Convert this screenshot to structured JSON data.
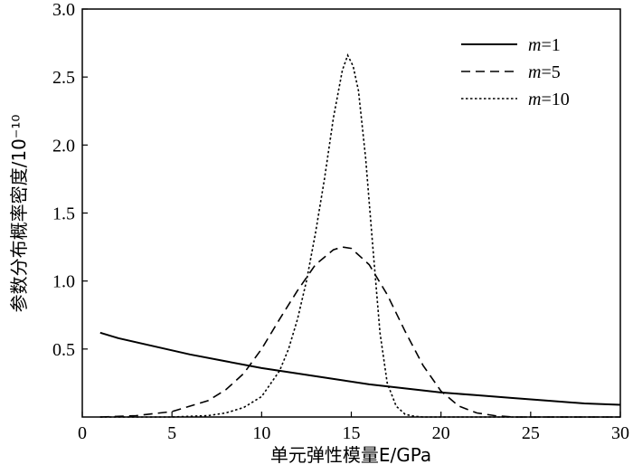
{
  "chart_data": {
    "type": "line",
    "title": "",
    "xlabel": "单元弹性模量E/GPa",
    "ylabel": "参数分布概率密度/10⁻¹⁰",
    "xlim": [
      0,
      30
    ],
    "ylim": [
      0,
      3.0
    ],
    "xticks": [
      "0",
      "5",
      "10",
      "15",
      "20",
      "25",
      "30"
    ],
    "yticks": [
      "0.5",
      "1.0",
      "1.5",
      "2.0",
      "2.5",
      "3.0"
    ],
    "grid": false,
    "legend_position": "top-right",
    "series": [
      {
        "name": "m=1",
        "x": [
          1,
          2,
          4,
          6,
          8,
          10,
          12,
          14,
          16,
          18,
          20,
          22,
          24,
          26,
          28,
          30
        ],
        "y": [
          0.62,
          0.58,
          0.52,
          0.46,
          0.41,
          0.36,
          0.32,
          0.28,
          0.24,
          0.21,
          0.18,
          0.16,
          0.14,
          0.12,
          0.1,
          0.09
        ]
      },
      {
        "name": "m=5",
        "x": [
          1,
          3,
          5,
          7,
          8,
          9,
          10,
          11,
          12,
          13,
          14,
          14.5,
          15,
          16,
          17,
          18,
          19,
          20,
          21,
          22,
          23,
          24,
          30
        ],
        "y": [
          0.0,
          0.01,
          0.04,
          0.12,
          0.2,
          0.32,
          0.5,
          0.72,
          0.93,
          1.12,
          1.23,
          1.25,
          1.24,
          1.12,
          0.9,
          0.63,
          0.38,
          0.19,
          0.08,
          0.03,
          0.01,
          0.0,
          0.0
        ]
      },
      {
        "name": "m=10",
        "x": [
          1,
          5,
          7,
          8,
          9,
          10,
          11,
          11.5,
          12,
          12.5,
          13,
          13.5,
          14,
          14.5,
          14.8,
          15.1,
          15.4,
          15.8,
          16.2,
          16.6,
          17,
          17.5,
          18,
          18.5,
          19,
          30
        ],
        "y": [
          0.0,
          0.0,
          0.01,
          0.03,
          0.07,
          0.15,
          0.34,
          0.5,
          0.72,
          1.0,
          1.35,
          1.75,
          2.2,
          2.55,
          2.66,
          2.58,
          2.4,
          1.9,
          1.25,
          0.62,
          0.25,
          0.08,
          0.02,
          0.005,
          0.0,
          0.0
        ]
      }
    ]
  }
}
